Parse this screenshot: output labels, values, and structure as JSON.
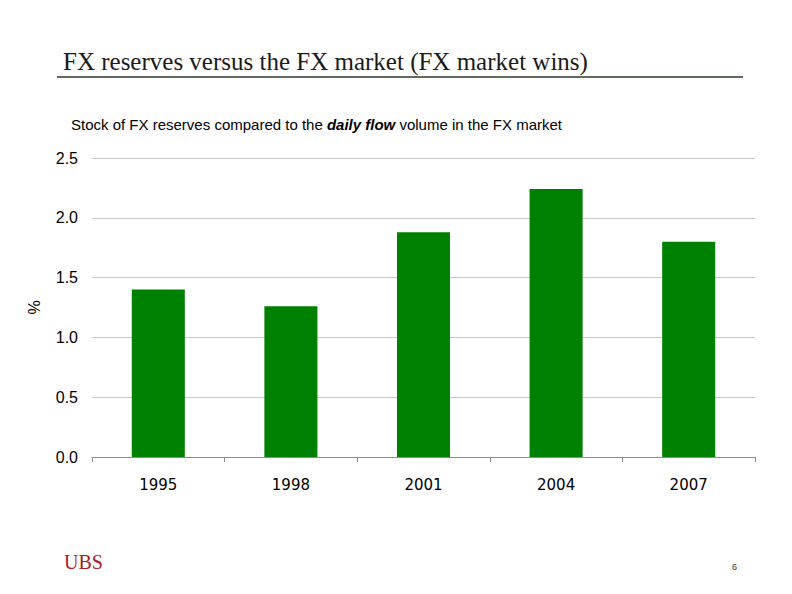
{
  "chart_data": {
    "type": "bar",
    "title": "FX reserves versus the FX market (FX market wins)",
    "subtitle": "Stock of FX reserves compared to the daily flow volume in the FX market",
    "subtitle_emphasis": "daily flow",
    "y_label": "%",
    "categories": [
      "1995",
      "1998",
      "2001",
      "2004",
      "2007"
    ],
    "values": [
      1.4,
      1.26,
      1.88,
      2.24,
      1.8
    ],
    "color": "#008000",
    "ylim": [
      0,
      2.5
    ],
    "yticks": [
      {
        "value": 0,
        "label": "0.0"
      },
      0.5,
      {
        "value": 1,
        "label": "1.0"
      },
      1.5,
      {
        "value": 2,
        "label": "2.0"
      },
      2.5
    ],
    "grid": true,
    "logo_text": "UBS",
    "page_number": "6"
  }
}
